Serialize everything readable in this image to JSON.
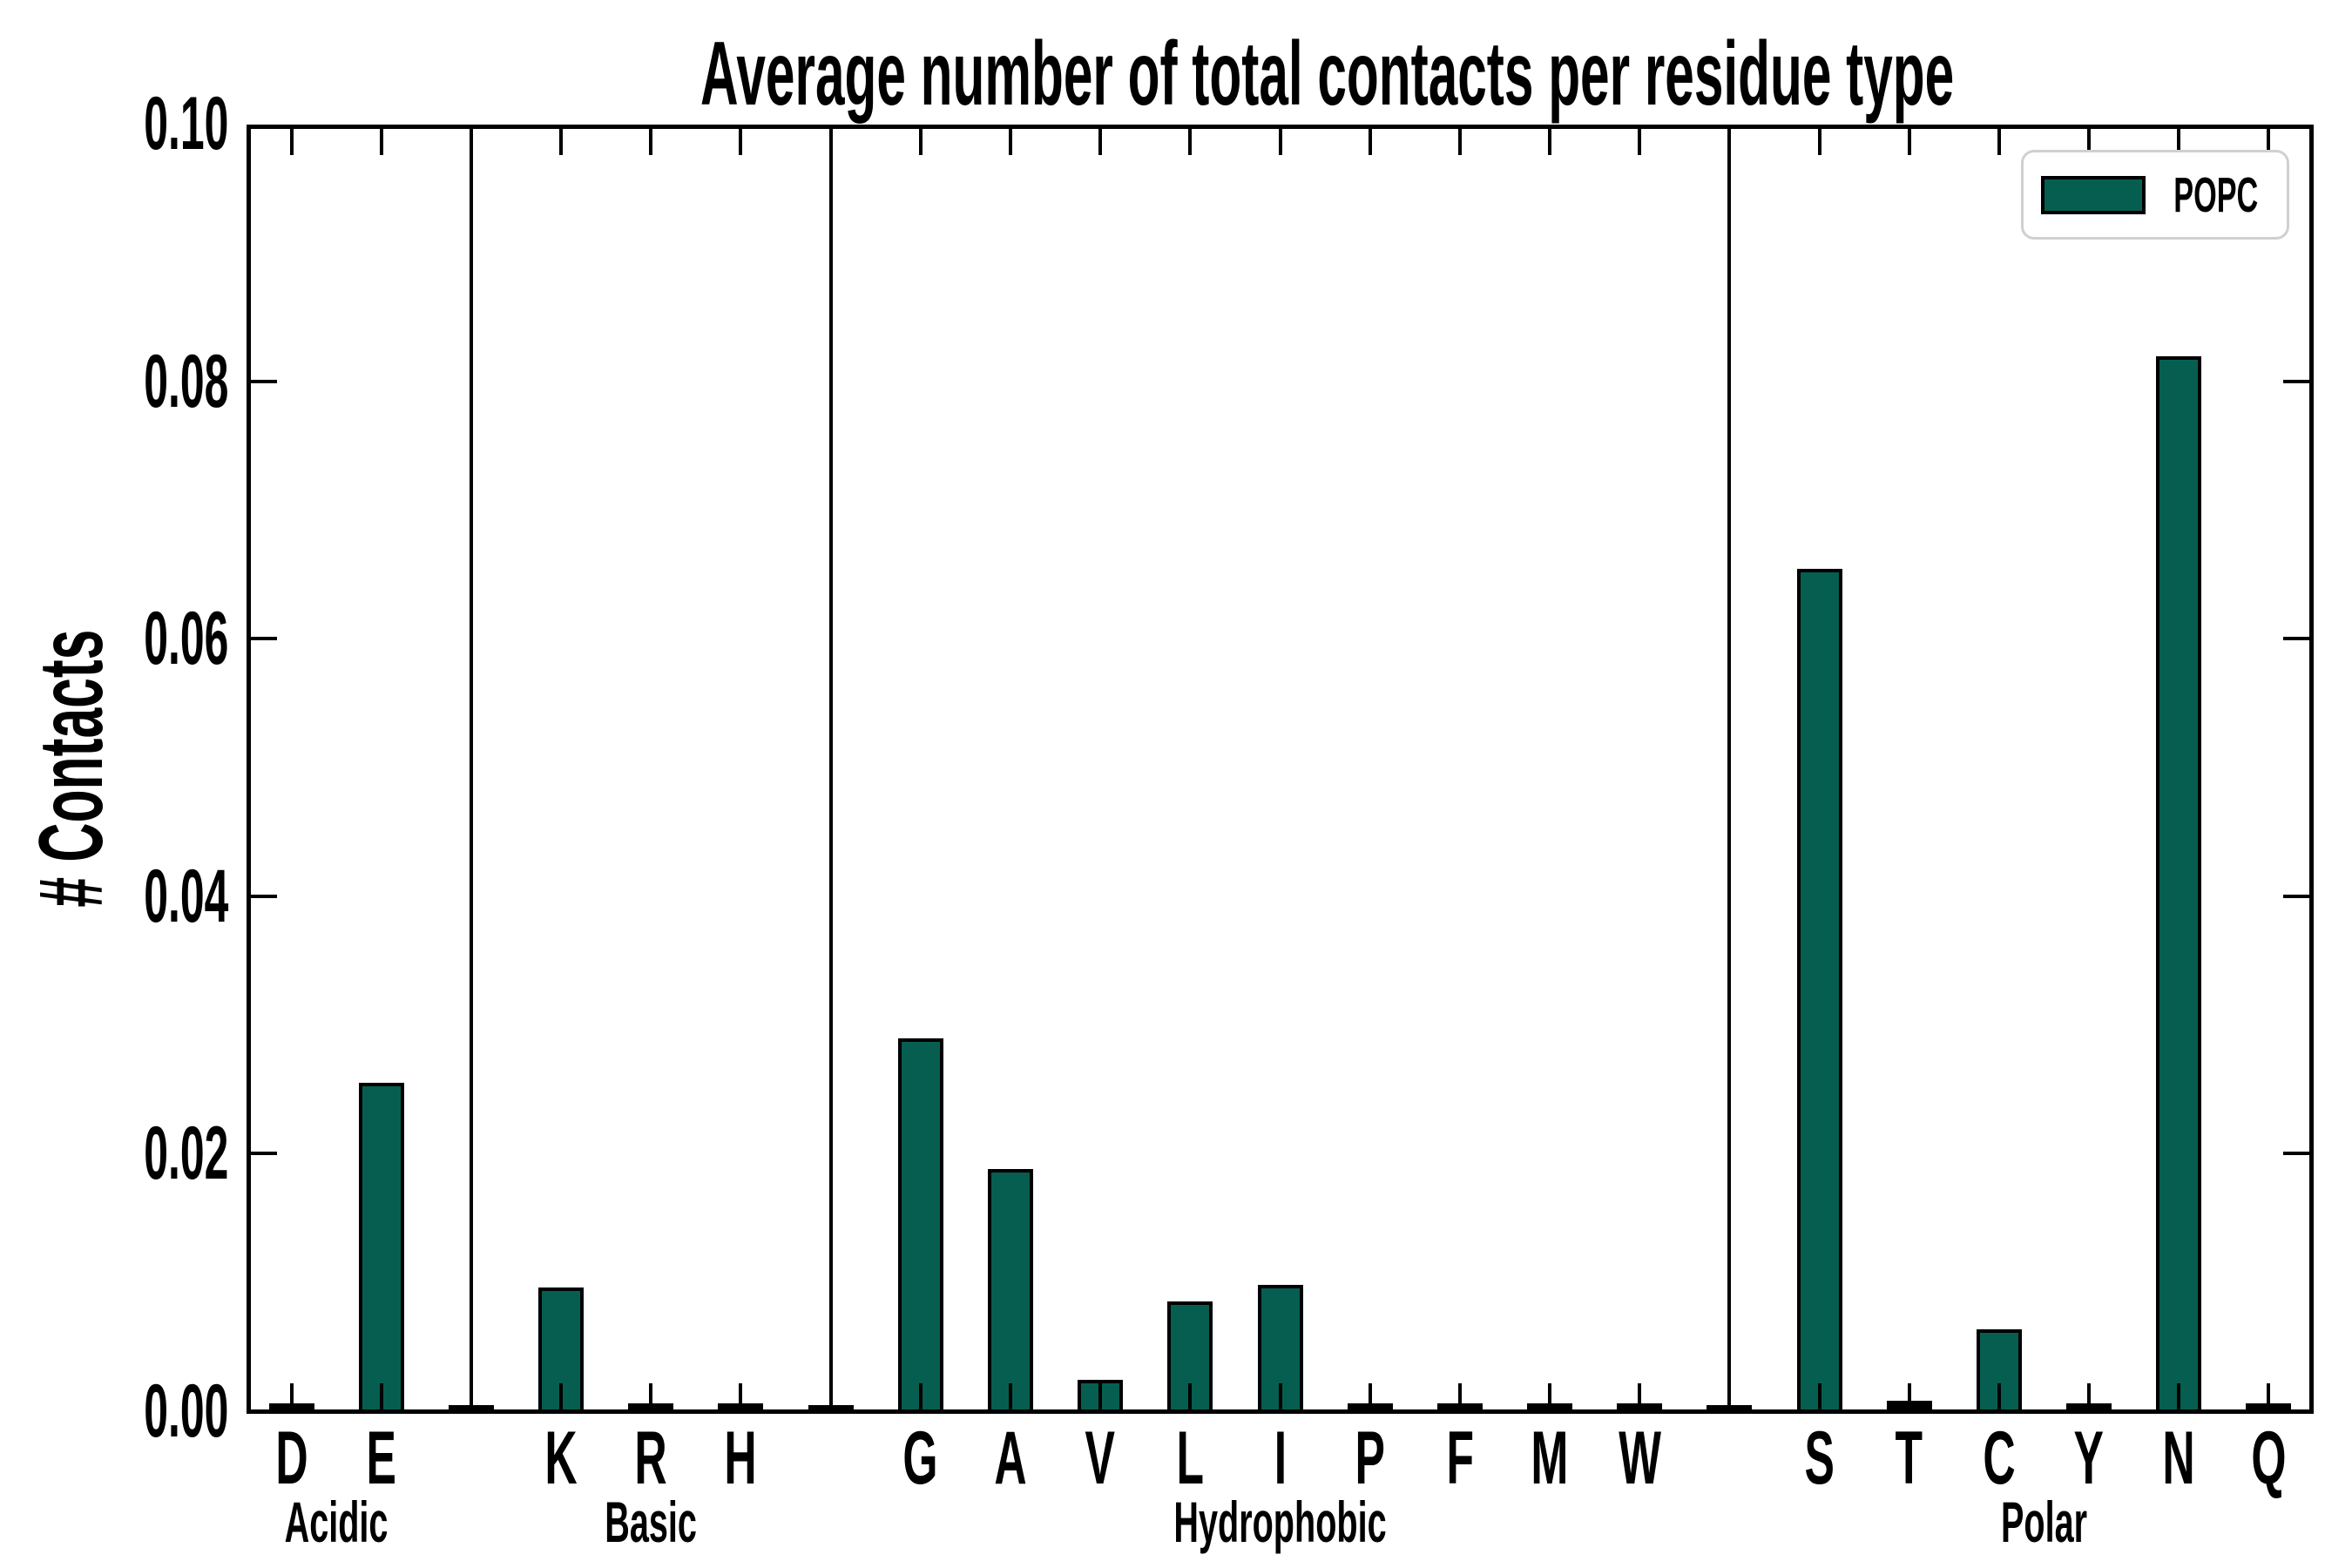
{
  "chart_data": {
    "type": "bar",
    "title": "Average number of total contacts per residue type",
    "ylabel": "# Contacts",
    "xlabel": "",
    "ylim": [
      0,
      0.1
    ],
    "yticks": [
      "0.00",
      "0.02",
      "0.04",
      "0.06",
      "0.08",
      "0.10"
    ],
    "grid": false,
    "legend": {
      "entries": [
        "POPC"
      ],
      "position": "upper right"
    },
    "series": [
      {
        "name": "POPC",
        "color": "#065E51"
      }
    ],
    "groups": [
      {
        "name": "Acidic",
        "categories": [
          "D",
          "E"
        ],
        "values": [
          0.0002,
          0.0254
        ]
      },
      {
        "name": "Basic",
        "categories": [
          "K",
          "R",
          "H"
        ],
        "values": [
          0.0095,
          0.0002,
          0.0002
        ]
      },
      {
        "name": "Hydrophobic",
        "categories": [
          "G",
          "A",
          "V",
          "L",
          "I",
          "P",
          "F",
          "M",
          "W"
        ],
        "values": [
          0.0288,
          0.0187,
          0.0023,
          0.0084,
          0.0097,
          0.0002,
          0.0002,
          0.0002,
          0.0002
        ]
      },
      {
        "name": "Polar",
        "categories": [
          "S",
          "T",
          "C",
          "Y",
          "N",
          "Q"
        ],
        "values": [
          0.0653,
          0.0004,
          0.0062,
          0.0002,
          0.0818,
          0.0002
        ]
      }
    ]
  },
  "colors": {
    "bar_fill": "#065E51",
    "bar_edge": "#000000",
    "legend_border": "#d0d0d0",
    "background": "#ffffff"
  }
}
